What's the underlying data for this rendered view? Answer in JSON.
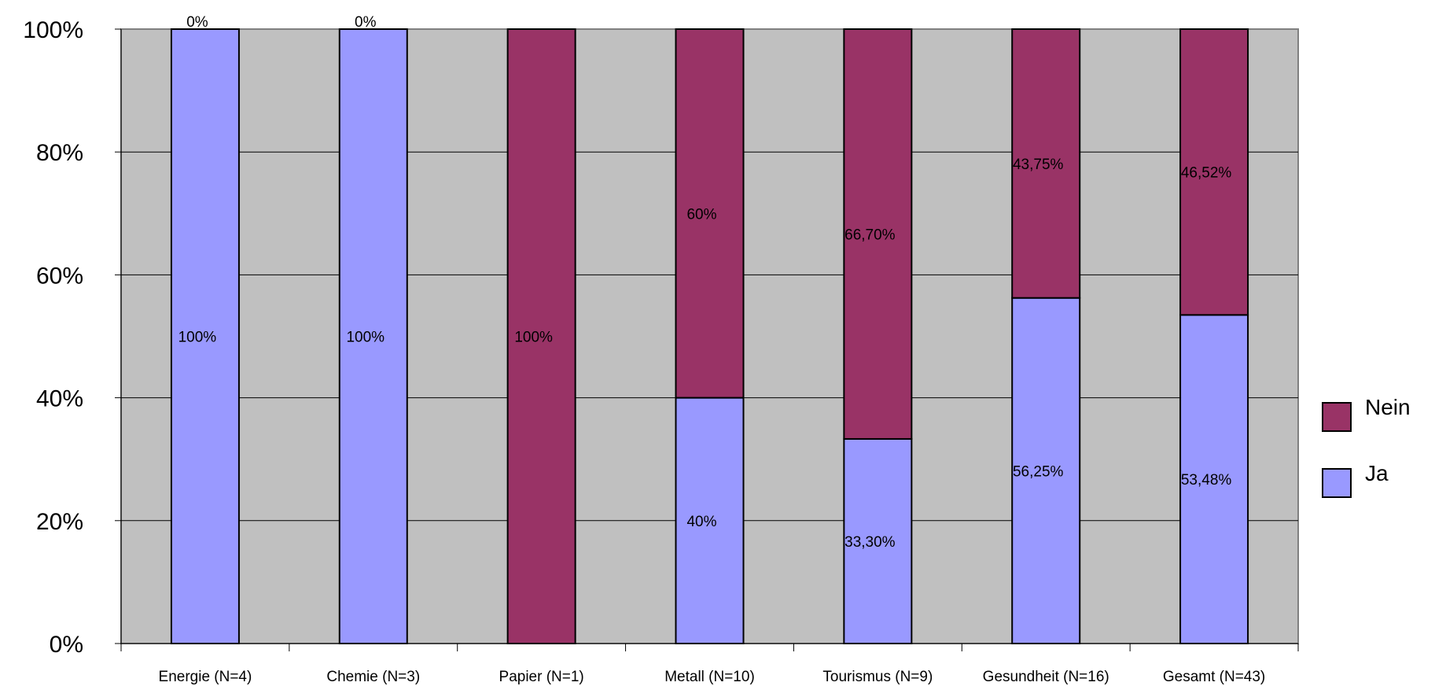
{
  "chart_data": {
    "type": "bar",
    "stacked": true,
    "normalized": true,
    "categories": [
      "Energie (N=4)",
      "Chemie (N=3)",
      "Papier (N=1)",
      "Metall (N=10)",
      "Tourismus (N=9)",
      "Gesundheit (N=16)",
      "Gesamt (N=43)"
    ],
    "series": [
      {
        "name": "Ja",
        "color": "#9999ff",
        "values": [
          100,
          100,
          0,
          40,
          33.3,
          56.25,
          53.48
        ],
        "labels": [
          "100%",
          "100%",
          "",
          "40%",
          "33,30%",
          "56,25%",
          "53,48%"
        ]
      },
      {
        "name": "Nein",
        "color": "#993366",
        "values": [
          0,
          0,
          100,
          60,
          66.7,
          43.75,
          46.52
        ],
        "labels": [
          "0%",
          "0%",
          "100%",
          "60%",
          "66,70%",
          "43,75%",
          "46,52%"
        ]
      }
    ],
    "yticks": [
      "0%",
      "20%",
      "40%",
      "60%",
      "80%",
      "100%"
    ],
    "ylim": [
      0,
      100
    ],
    "grid": true,
    "plot_background": "#c0c0c0",
    "legend_position": "right",
    "legend": [
      "Nein",
      "Ja"
    ]
  }
}
